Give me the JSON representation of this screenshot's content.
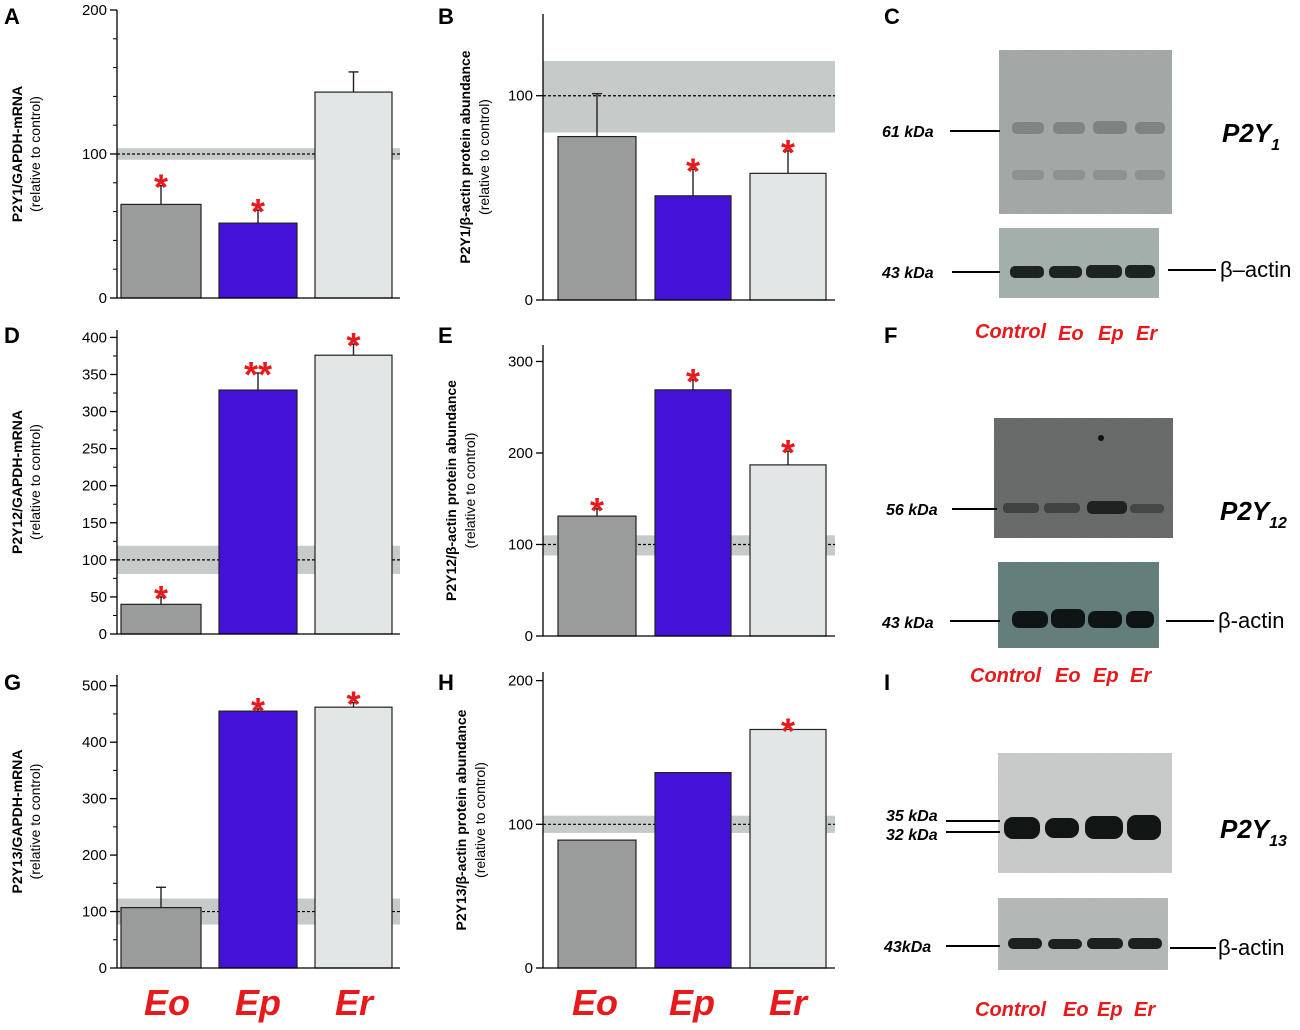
{
  "categories": [
    "Eo",
    "Ep",
    "Er"
  ],
  "colors": {
    "Eo": "#9a9c9c",
    "Ep": "#4411d8",
    "Er": "#e2e6e7",
    "control_band": "#c6cac8",
    "star": "#e8191b"
  },
  "chart_data": [
    {
      "panel": "A",
      "type": "bar",
      "ylabel_main": "P2Y1/GAPDH-mRNA",
      "ylabel_sub": "(relative to control)",
      "ylim": [
        0,
        200
      ],
      "yticks": [
        0,
        100,
        200
      ],
      "minor": 20,
      "control_band": [
        96,
        104
      ],
      "categories": [
        "Eo",
        "Ep",
        "Er"
      ],
      "values": [
        65,
        52,
        143
      ],
      "errors": [
        13,
        9,
        14
      ],
      "stars": [
        "*",
        "*",
        ""
      ]
    },
    {
      "panel": "B",
      "type": "bar",
      "ylabel_main": "P2Y1/β-actin protein abundance",
      "ylabel_sub": "(relative to control)",
      "ylim": [
        0,
        140
      ],
      "yticks": [
        0,
        100
      ],
      "minor": 0,
      "control_band": [
        82,
        117
      ],
      "categories": [
        "Eo",
        "Ep",
        "Er"
      ],
      "values": [
        80,
        51,
        62
      ],
      "errors": [
        21,
        13,
        11
      ],
      "stars": [
        "",
        "*",
        "*"
      ]
    },
    {
      "panel": "D",
      "type": "bar",
      "ylabel_main": "P2Y12/GAPDH-mRNA",
      "ylabel_sub": "(relative to control)",
      "ylim": [
        0,
        410
      ],
      "yticks": [
        0,
        50,
        100,
        150,
        200,
        250,
        300,
        350,
        400
      ],
      "minor": 25,
      "control_band": [
        81,
        119
      ],
      "categories": [
        "Eo",
        "Ep",
        "Er"
      ],
      "values": [
        40,
        329,
        376
      ],
      "errors": [
        10,
        23,
        15
      ],
      "stars": [
        "*",
        "**",
        "*"
      ]
    },
    {
      "panel": "E",
      "type": "bar",
      "ylabel_main": "P2Y12/β-actin protein abundance",
      "ylabel_sub": "(relative to control)",
      "ylim": [
        0,
        300
      ],
      "yticks": [
        0,
        100,
        200,
        300
      ],
      "minor": 0,
      "control_band": [
        88,
        110
      ],
      "categories": [
        "Eo",
        "Ep",
        "Er"
      ],
      "values": [
        131,
        269,
        187
      ],
      "errors": [
        8,
        11,
        15
      ],
      "stars": [
        "*",
        "*",
        "*"
      ]
    },
    {
      "panel": "G",
      "type": "bar",
      "ylabel_main": "P2Y13/GAPDH-mRNA",
      "ylabel_sub": "(relative to control)",
      "ylim": [
        0,
        520
      ],
      "yticks": [
        0,
        100,
        200,
        300,
        400,
        500
      ],
      "minor": 50,
      "control_band": [
        77,
        123
      ],
      "categories": [
        "Eo",
        "Ep",
        "Er"
      ],
      "values": [
        107,
        455,
        462
      ],
      "errors": [
        36,
        4,
        8
      ],
      "stars": [
        "",
        "*",
        "*"
      ]
    },
    {
      "panel": "H",
      "type": "bar",
      "ylabel_main": "P2Y13/β-actin protein abundance",
      "ylabel_sub": "(relative to control)",
      "ylim": [
        0,
        200
      ],
      "yticks": [
        0,
        100,
        200
      ],
      "minor": 0,
      "control_band": [
        94,
        106
      ],
      "categories": [
        "Eo",
        "Ep",
        "Er"
      ],
      "values": [
        89,
        136,
        166
      ],
      "errors": [
        0,
        0,
        0
      ],
      "stars": [
        "",
        "",
        "*"
      ]
    }
  ],
  "blots": [
    {
      "panel": "C",
      "protein": "P2Y",
      "protein_sub": "1",
      "band_kda": [
        "61 kDa"
      ],
      "actin_kda": "43 kDa",
      "actin_label": "β–actin",
      "lanes": [
        "Control",
        "Eo",
        "Ep",
        "Er"
      ]
    },
    {
      "panel": "F",
      "protein": "P2Y",
      "protein_sub": "12",
      "band_kda": [
        "56 kDa"
      ],
      "actin_kda": "43 kDa",
      "actin_label": "β-actin",
      "lanes": [
        "Control",
        "Eo",
        "Ep",
        "Er"
      ]
    },
    {
      "panel": "I",
      "protein": "P2Y",
      "protein_sub": "13",
      "band_kda": [
        "35 kDa",
        "32 kDa"
      ],
      "actin_kda": "43kDa",
      "actin_label": "β-actin",
      "lanes": [
        "Control",
        "Eo",
        "Ep",
        "Er"
      ]
    }
  ]
}
